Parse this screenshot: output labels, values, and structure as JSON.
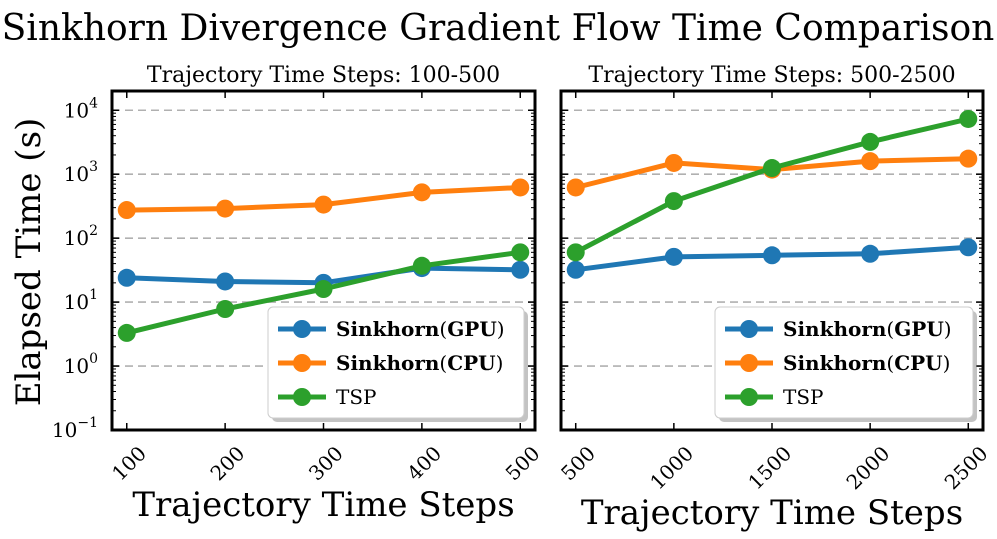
{
  "figure": {
    "title": "Sinkhorn Divergence Gradient Flow Time Comparison",
    "ylabel": "Elapsed Time (s)"
  },
  "colors": {
    "gpu": "#1f77b4",
    "cpu": "#ff7f0e",
    "tsp": "#2ca02c",
    "grid": "#b0b0b0",
    "axes": "#000000"
  },
  "yaxis": {
    "scale": "log",
    "ylim": [
      0.1,
      20000
    ],
    "ticks": [
      {
        "value": 0.1,
        "base": "10",
        "exp": "−1"
      },
      {
        "value": 1,
        "base": "10",
        "exp": "0"
      },
      {
        "value": 10,
        "base": "10",
        "exp": "1"
      },
      {
        "value": 100,
        "base": "10",
        "exp": "2"
      },
      {
        "value": 1000,
        "base": "10",
        "exp": "3"
      },
      {
        "value": 10000,
        "base": "10",
        "exp": "4"
      }
    ],
    "grid": true
  },
  "chart_data": [
    {
      "type": "line",
      "title": "Trajectory Time Steps: 100-500",
      "xlabel": "Trajectory Time Steps",
      "ylabel": "Elapsed Time (s)",
      "x": [
        100,
        200,
        300,
        400,
        500
      ],
      "xticklabels": [
        "100",
        "200",
        "300",
        "400",
        "500"
      ],
      "xlim": [
        85,
        515
      ],
      "legend": "lower-right",
      "series": [
        {
          "key": "gpu",
          "name": "Sinkhorn",
          "tag": "(GPU)",
          "values": [
            24,
            21,
            20,
            34,
            32
          ]
        },
        {
          "key": "cpu",
          "name": "Sinkhorn",
          "tag": "(CPU)",
          "values": [
            275,
            290,
            335,
            520,
            620
          ]
        },
        {
          "key": "tsp",
          "name": "TSP",
          "tag": "",
          "values": [
            3.3,
            7.8,
            16,
            37,
            60
          ]
        }
      ]
    },
    {
      "type": "line",
      "title": "Trajectory Time Steps: 500-2500",
      "xlabel": "Trajectory Time Steps",
      "ylabel": "",
      "x": [
        500,
        1000,
        1500,
        2000,
        2500
      ],
      "xticklabels": [
        "500",
        "1000",
        "1500",
        "2000",
        "2500"
      ],
      "xlim": [
        425,
        2575
      ],
      "legend": "lower-right",
      "series": [
        {
          "key": "gpu",
          "name": "Sinkhorn",
          "tag": "(GPU)",
          "values": [
            32,
            51,
            54,
            57,
            72
          ]
        },
        {
          "key": "cpu",
          "name": "Sinkhorn",
          "tag": "(CPU)",
          "values": [
            620,
            1500,
            1180,
            1600,
            1750
          ]
        },
        {
          "key": "tsp",
          "name": "TSP",
          "tag": "",
          "values": [
            60,
            380,
            1250,
            3200,
            7300
          ]
        }
      ]
    }
  ]
}
